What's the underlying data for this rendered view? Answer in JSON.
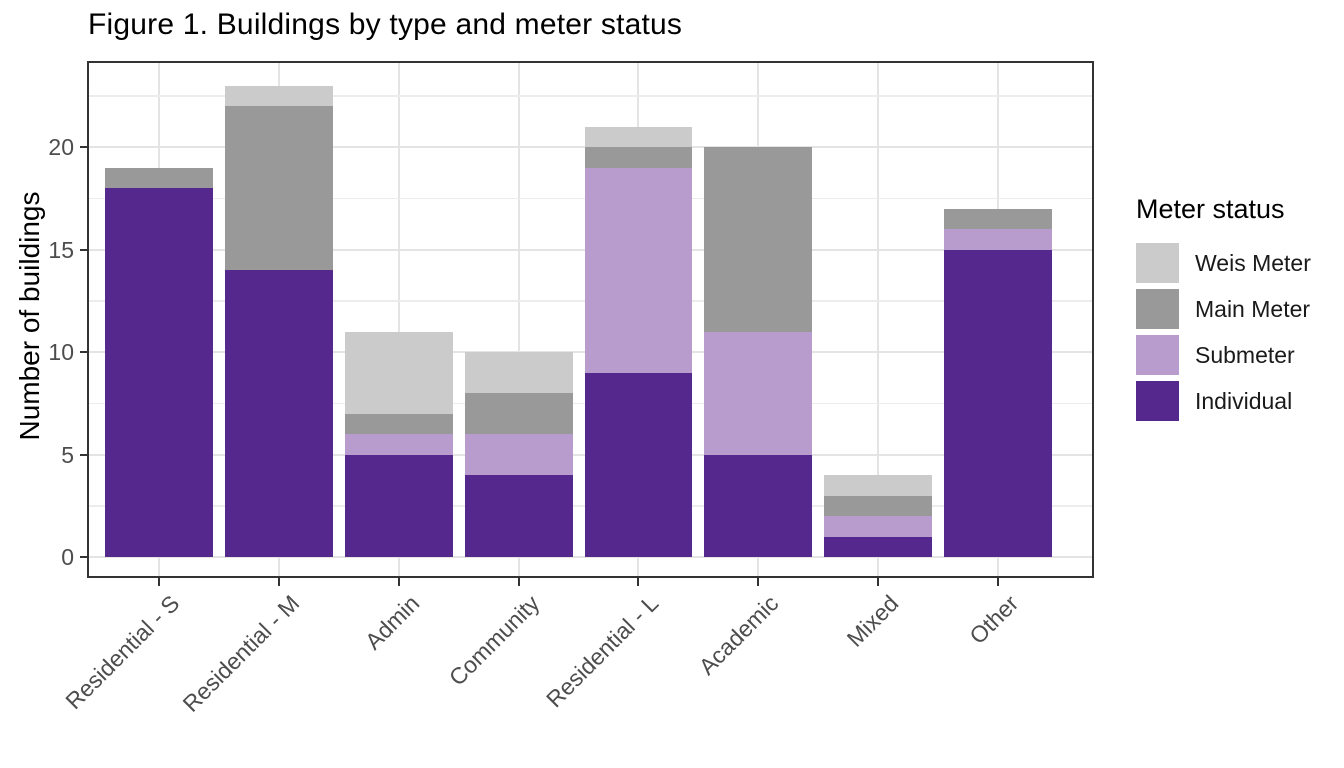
{
  "chart_data": {
    "type": "bar",
    "stacked": true,
    "title": "Figure 1. Buildings by type and meter status",
    "ylabel": "Number of buildings",
    "xlabel": "",
    "legend_title": "Meter status",
    "legend_position": "right",
    "grid": true,
    "categories": [
      "Residential - S",
      "Residential - M",
      "Admin",
      "Community",
      "Residential - L",
      "Academic",
      "Mixed",
      "Other"
    ],
    "series": [
      {
        "name": "Individual",
        "color": "#54288C",
        "values": [
          18,
          14,
          5,
          4,
          9,
          5,
          1,
          15
        ]
      },
      {
        "name": "Submeter",
        "color": "#B89CCE",
        "values": [
          0,
          0,
          1,
          2,
          10,
          6,
          1,
          1
        ]
      },
      {
        "name": "Main Meter",
        "color": "#999999",
        "values": [
          1,
          8,
          1,
          2,
          1,
          9,
          1,
          1
        ]
      },
      {
        "name": "Weis Meter",
        "color": "#CBCBCB",
        "values": [
          0,
          1,
          4,
          2,
          1,
          0,
          1,
          0
        ]
      }
    ],
    "stack_totals": [
      19,
      23,
      11,
      10,
      21,
      20,
      4,
      17
    ],
    "legend_order": [
      "Weis Meter",
      "Main Meter",
      "Submeter",
      "Individual"
    ],
    "y_ticks": [
      0,
      5,
      10,
      15,
      20
    ],
    "y_minor_ticks": [
      2.5,
      7.5,
      12.5,
      17.5,
      22.5
    ],
    "ylim": [
      -1.15,
      24.15
    ],
    "bar_width_fraction": 0.9
  }
}
